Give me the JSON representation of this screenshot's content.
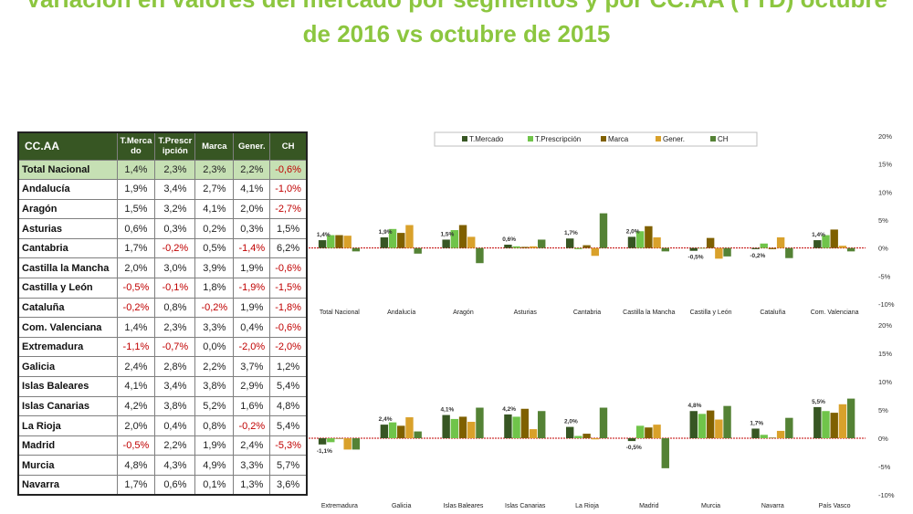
{
  "title": {
    "line1": "Variación en valores del mercado por segmentos y por CC.AA (YTD) octubre",
    "line2": "de 2016 vs octubre de 2015"
  },
  "table": {
    "headers": [
      "CC.AA",
      "T.Merca do",
      "T.Prescr ipción",
      "Marca",
      "Gener.",
      "CH"
    ],
    "rows": [
      [
        "Total Nacional",
        "1,4%",
        "2,3%",
        "2,3%",
        "2,2%",
        "-0,6%"
      ],
      [
        "Andalucía",
        "1,9%",
        "3,4%",
        "2,7%",
        "4,1%",
        "-1,0%"
      ],
      [
        "Aragón",
        "1,5%",
        "3,2%",
        "4,1%",
        "2,0%",
        "-2,7%"
      ],
      [
        "Asturias",
        "0,6%",
        "0,3%",
        "0,2%",
        "0,3%",
        "1,5%"
      ],
      [
        "Cantabria",
        "1,7%",
        "-0,2%",
        "0,5%",
        "-1,4%",
        "6,2%"
      ],
      [
        "Castilla la Mancha",
        "2,0%",
        "3,0%",
        "3,9%",
        "1,9%",
        "-0,6%"
      ],
      [
        "Castilla y León",
        "-0,5%",
        "-0,1%",
        "1,8%",
        "-1,9%",
        "-1,5%"
      ],
      [
        "Cataluña",
        "-0,2%",
        "0,8%",
        "-0,2%",
        "1,9%",
        "-1,8%"
      ],
      [
        "Com. Valenciana",
        "1,4%",
        "2,3%",
        "3,3%",
        "0,4%",
        "-0,6%"
      ],
      [
        "Extremadura",
        "-1,1%",
        "-0,7%",
        "0,0%",
        "-2,0%",
        "-2,0%"
      ],
      [
        "Galicia",
        "2,4%",
        "2,8%",
        "2,2%",
        "3,7%",
        "1,2%"
      ],
      [
        "Islas Baleares",
        "4,1%",
        "3,4%",
        "3,8%",
        "2,9%",
        "5,4%"
      ],
      [
        "Islas Canarias",
        "4,2%",
        "3,8%",
        "5,2%",
        "1,6%",
        "4,8%"
      ],
      [
        "La Rioja",
        "2,0%",
        "0,4%",
        "0,8%",
        "-0,2%",
        "5,4%"
      ],
      [
        "Madrid",
        "-0,5%",
        "2,2%",
        "1,9%",
        "2,4%",
        "-5,3%"
      ],
      [
        "Murcia",
        "4,8%",
        "4,3%",
        "4,9%",
        "3,3%",
        "5,7%"
      ],
      [
        "Navarra",
        "1,7%",
        "0,6%",
        "0,1%",
        "1,3%",
        "3,6%"
      ]
    ]
  },
  "chart_data": [
    {
      "type": "bar",
      "categories": [
        "Total Nacional",
        "Andalucía",
        "Aragón",
        "Asturias",
        "Cantabria",
        "Castilla la Mancha",
        "Castilla y León",
        "Cataluña",
        "Com. Valenciana"
      ],
      "series": [
        {
          "name": "T.Mercado",
          "values": [
            1.4,
            1.9,
            1.5,
            0.6,
            1.7,
            2.0,
            -0.5,
            -0.2,
            1.4
          ]
        },
        {
          "name": "T.Prescripción",
          "values": [
            2.3,
            3.4,
            3.2,
            0.3,
            -0.2,
            3.0,
            -0.1,
            0.8,
            2.3
          ]
        },
        {
          "name": "Marca",
          "values": [
            2.3,
            2.7,
            4.1,
            0.2,
            0.5,
            3.9,
            1.8,
            -0.2,
            3.3
          ]
        },
        {
          "name": "Gener.",
          "values": [
            2.2,
            4.1,
            2.0,
            0.3,
            -1.4,
            1.9,
            -1.9,
            1.9,
            0.4
          ]
        },
        {
          "name": "CH",
          "values": [
            -0.6,
            -1.0,
            -2.7,
            1.5,
            6.2,
            -0.6,
            -1.5,
            -1.8,
            -0.6
          ]
        }
      ],
      "data_labels": [
        "1,4%",
        "1,9%",
        "1,5%",
        "0,6%",
        "1,7%",
        "2,0%",
        "-0,5%",
        "-0,2%",
        "1,4%"
      ],
      "ylim": [
        -10,
        20
      ],
      "y_ticks": [
        "20%",
        "15%",
        "10%",
        "5%",
        "0%",
        "-5%",
        "-10%"
      ],
      "legend": "top"
    },
    {
      "type": "bar",
      "categories": [
        "Extremadura",
        "Galicia",
        "Islas Baleares",
        "Islas Canarias",
        "La Rioja",
        "Madrid",
        "Murcia",
        "Navarra",
        "País Vasco"
      ],
      "series": [
        {
          "name": "T.Mercado",
          "values": [
            -1.1,
            2.4,
            4.1,
            4.2,
            2.0,
            -0.5,
            4.8,
            1.7,
            5.5
          ]
        },
        {
          "name": "T.Prescripción",
          "values": [
            -0.7,
            2.8,
            3.4,
            3.8,
            0.4,
            2.2,
            4.3,
            0.6,
            4.8
          ]
        },
        {
          "name": "Marca",
          "values": [
            0.0,
            2.2,
            3.8,
            5.2,
            0.8,
            1.9,
            4.9,
            0.1,
            4.5
          ]
        },
        {
          "name": "Gener.",
          "values": [
            -2.0,
            3.7,
            2.9,
            1.6,
            -0.2,
            2.4,
            3.3,
            1.3,
            6.0
          ]
        },
        {
          "name": "CH",
          "values": [
            -2.0,
            1.2,
            5.4,
            4.8,
            5.4,
            -5.3,
            5.7,
            3.6,
            7.0
          ]
        }
      ],
      "data_labels": [
        "-1,1%",
        "2,4%",
        "4,1%",
        "4,2%",
        "2,0%",
        "-0,5%",
        "4,8%",
        "1,7%",
        "5,5%"
      ],
      "ylim": [
        -10,
        20
      ],
      "y_ticks": [
        "20%",
        "15%",
        "10%",
        "5%",
        "0%",
        "-5%",
        "-10%"
      ]
    }
  ],
  "colors": {
    "T.Mercado": "#375623",
    "T.Prescripción": "#70c44a",
    "Marca": "#7f6000",
    "Gener.": "#d9a12b",
    "CH": "#548235"
  }
}
